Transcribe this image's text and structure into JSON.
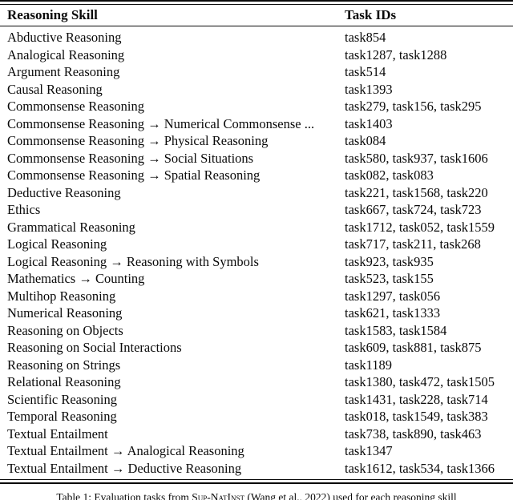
{
  "table": {
    "headers": {
      "skill": "Reasoning Skill",
      "task_ids": "Task IDs"
    },
    "rows": [
      {
        "skill": "Abductive Reasoning",
        "task_ids": "task854"
      },
      {
        "skill": "Analogical Reasoning",
        "task_ids": "task1287, task1288"
      },
      {
        "skill": "Argument Reasoning",
        "task_ids": "task514"
      },
      {
        "skill": "Causal Reasoning",
        "task_ids": "task1393"
      },
      {
        "skill": "Commonsense Reasoning",
        "task_ids": "task279, task156, task295"
      },
      {
        "skill": "Commonsense Reasoning → Numerical Commonsense ...",
        "task_ids": "task1403"
      },
      {
        "skill": "Commonsense Reasoning → Physical Reasoning",
        "task_ids": "task084"
      },
      {
        "skill": "Commonsense Reasoning → Social Situations",
        "task_ids": "task580, task937, task1606"
      },
      {
        "skill": "Commonsense Reasoning → Spatial Reasoning",
        "task_ids": "task082, task083"
      },
      {
        "skill": "Deductive Reasoning",
        "task_ids": "task221, task1568, task220"
      },
      {
        "skill": "Ethics",
        "task_ids": "task667, task724, task723"
      },
      {
        "skill": "Grammatical Reasoning",
        "task_ids": "task1712, task052, task1559"
      },
      {
        "skill": "Logical Reasoning",
        "task_ids": "task717, task211, task268"
      },
      {
        "skill": "Logical Reasoning → Reasoning with Symbols",
        "task_ids": "task923, task935"
      },
      {
        "skill": "Mathematics → Counting",
        "task_ids": "task523, task155"
      },
      {
        "skill": "Multihop Reasoning",
        "task_ids": "task1297, task056"
      },
      {
        "skill": "Numerical Reasoning",
        "task_ids": "task621, task1333"
      },
      {
        "skill": "Reasoning on Objects",
        "task_ids": "task1583, task1584"
      },
      {
        "skill": "Reasoning on Social Interactions",
        "task_ids": "task609, task881, task875"
      },
      {
        "skill": "Reasoning on Strings",
        "task_ids": "task1189"
      },
      {
        "skill": "Relational Reasoning",
        "task_ids": "task1380, task472, task1505"
      },
      {
        "skill": "Scientific Reasoning",
        "task_ids": "task1431, task228, task714"
      },
      {
        "skill": "Temporal Reasoning",
        "task_ids": "task018, task1549, task383"
      },
      {
        "skill": "Textual Entailment",
        "task_ids": "task738, task890, task463"
      },
      {
        "skill": "Textual Entailment → Analogical Reasoning",
        "task_ids": "task1347"
      },
      {
        "skill": "Textual Entailment → Deductive Reasoning",
        "task_ids": "task1612, task534, task1366"
      }
    ]
  },
  "caption": {
    "prefix": "Table 1: Evaluation tasks from ",
    "dataset": "Sup-NatInst",
    "suffix": " (Wang et al., 2022) used for each reasoning skill"
  },
  "colors": {
    "text": "#0a0a0a",
    "rule": "#0a0a0a",
    "background": "#ffffff"
  }
}
